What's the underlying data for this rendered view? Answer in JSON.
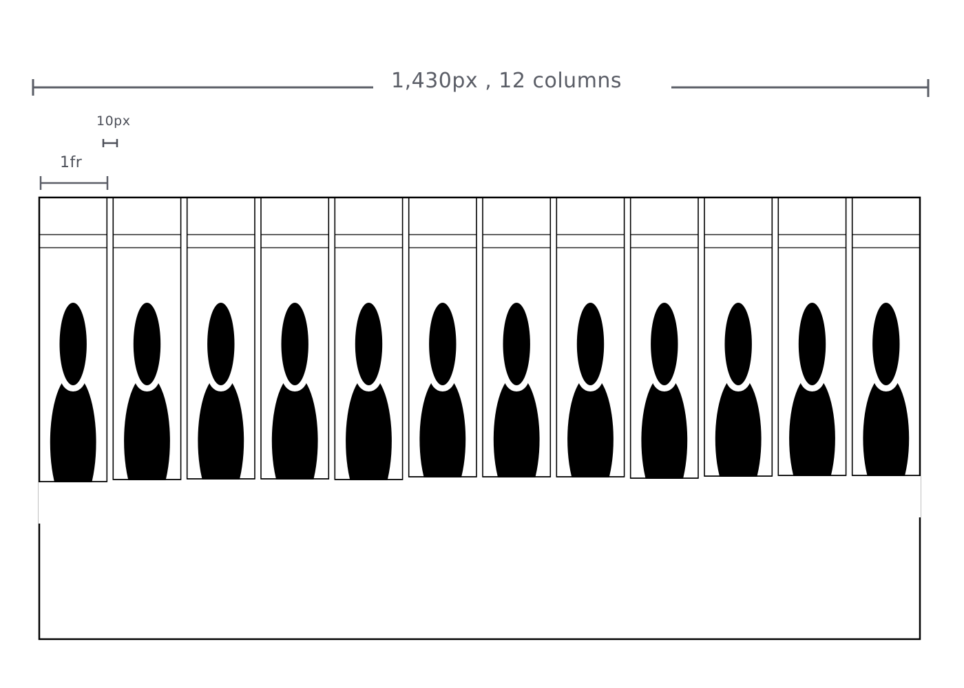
{
  "annotations": {
    "total_width_label": "1,430px , 12 columns",
    "gap_label": "10px",
    "column_label": "1fr"
  },
  "grid": {
    "column_count": 12,
    "column_content": "person-silhouette"
  },
  "colors": {
    "ink": "#000000",
    "annotation": "#5a5d66",
    "background": "#ffffff"
  }
}
